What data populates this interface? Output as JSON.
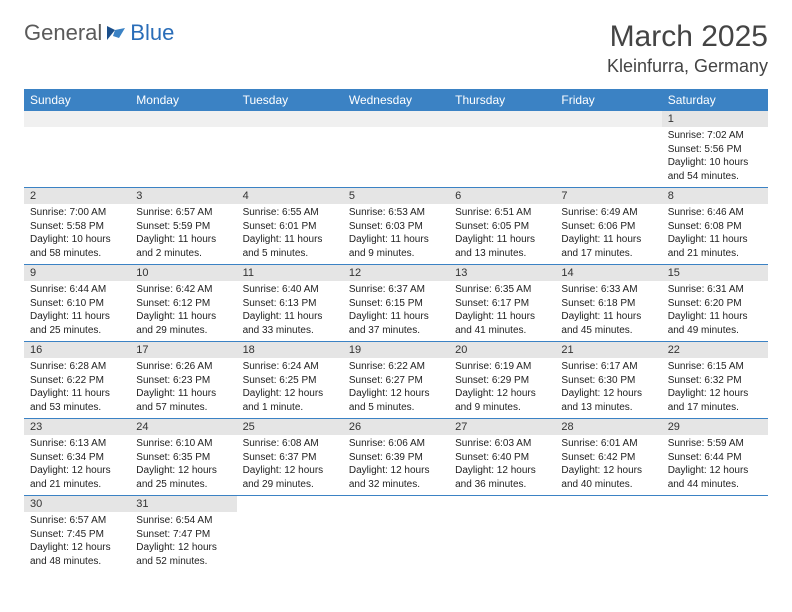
{
  "logo": {
    "text1": "General",
    "text2": "Blue"
  },
  "title": "March 2025",
  "location": "Kleinfurra, Germany",
  "colors": {
    "header_bg": "#3b82c4",
    "header_text": "#ffffff",
    "daynum_bg": "#e5e5e5",
    "border": "#3b82c4",
    "logo_gray": "#5a5a5a",
    "logo_blue": "#2a6db8"
  },
  "weekdays": [
    "Sunday",
    "Monday",
    "Tuesday",
    "Wednesday",
    "Thursday",
    "Friday",
    "Saturday"
  ],
  "weeks": [
    [
      null,
      null,
      null,
      null,
      null,
      null,
      {
        "n": "1",
        "sr": "Sunrise: 7:02 AM",
        "ss": "Sunset: 5:56 PM",
        "dl": "Daylight: 10 hours and 54 minutes."
      }
    ],
    [
      {
        "n": "2",
        "sr": "Sunrise: 7:00 AM",
        "ss": "Sunset: 5:58 PM",
        "dl": "Daylight: 10 hours and 58 minutes."
      },
      {
        "n": "3",
        "sr": "Sunrise: 6:57 AM",
        "ss": "Sunset: 5:59 PM",
        "dl": "Daylight: 11 hours and 2 minutes."
      },
      {
        "n": "4",
        "sr": "Sunrise: 6:55 AM",
        "ss": "Sunset: 6:01 PM",
        "dl": "Daylight: 11 hours and 5 minutes."
      },
      {
        "n": "5",
        "sr": "Sunrise: 6:53 AM",
        "ss": "Sunset: 6:03 PM",
        "dl": "Daylight: 11 hours and 9 minutes."
      },
      {
        "n": "6",
        "sr": "Sunrise: 6:51 AM",
        "ss": "Sunset: 6:05 PM",
        "dl": "Daylight: 11 hours and 13 minutes."
      },
      {
        "n": "7",
        "sr": "Sunrise: 6:49 AM",
        "ss": "Sunset: 6:06 PM",
        "dl": "Daylight: 11 hours and 17 minutes."
      },
      {
        "n": "8",
        "sr": "Sunrise: 6:46 AM",
        "ss": "Sunset: 6:08 PM",
        "dl": "Daylight: 11 hours and 21 minutes."
      }
    ],
    [
      {
        "n": "9",
        "sr": "Sunrise: 6:44 AM",
        "ss": "Sunset: 6:10 PM",
        "dl": "Daylight: 11 hours and 25 minutes."
      },
      {
        "n": "10",
        "sr": "Sunrise: 6:42 AM",
        "ss": "Sunset: 6:12 PM",
        "dl": "Daylight: 11 hours and 29 minutes."
      },
      {
        "n": "11",
        "sr": "Sunrise: 6:40 AM",
        "ss": "Sunset: 6:13 PM",
        "dl": "Daylight: 11 hours and 33 minutes."
      },
      {
        "n": "12",
        "sr": "Sunrise: 6:37 AM",
        "ss": "Sunset: 6:15 PM",
        "dl": "Daylight: 11 hours and 37 minutes."
      },
      {
        "n": "13",
        "sr": "Sunrise: 6:35 AM",
        "ss": "Sunset: 6:17 PM",
        "dl": "Daylight: 11 hours and 41 minutes."
      },
      {
        "n": "14",
        "sr": "Sunrise: 6:33 AM",
        "ss": "Sunset: 6:18 PM",
        "dl": "Daylight: 11 hours and 45 minutes."
      },
      {
        "n": "15",
        "sr": "Sunrise: 6:31 AM",
        "ss": "Sunset: 6:20 PM",
        "dl": "Daylight: 11 hours and 49 minutes."
      }
    ],
    [
      {
        "n": "16",
        "sr": "Sunrise: 6:28 AM",
        "ss": "Sunset: 6:22 PM",
        "dl": "Daylight: 11 hours and 53 minutes."
      },
      {
        "n": "17",
        "sr": "Sunrise: 6:26 AM",
        "ss": "Sunset: 6:23 PM",
        "dl": "Daylight: 11 hours and 57 minutes."
      },
      {
        "n": "18",
        "sr": "Sunrise: 6:24 AM",
        "ss": "Sunset: 6:25 PM",
        "dl": "Daylight: 12 hours and 1 minute."
      },
      {
        "n": "19",
        "sr": "Sunrise: 6:22 AM",
        "ss": "Sunset: 6:27 PM",
        "dl": "Daylight: 12 hours and 5 minutes."
      },
      {
        "n": "20",
        "sr": "Sunrise: 6:19 AM",
        "ss": "Sunset: 6:29 PM",
        "dl": "Daylight: 12 hours and 9 minutes."
      },
      {
        "n": "21",
        "sr": "Sunrise: 6:17 AM",
        "ss": "Sunset: 6:30 PM",
        "dl": "Daylight: 12 hours and 13 minutes."
      },
      {
        "n": "22",
        "sr": "Sunrise: 6:15 AM",
        "ss": "Sunset: 6:32 PM",
        "dl": "Daylight: 12 hours and 17 minutes."
      }
    ],
    [
      {
        "n": "23",
        "sr": "Sunrise: 6:13 AM",
        "ss": "Sunset: 6:34 PM",
        "dl": "Daylight: 12 hours and 21 minutes."
      },
      {
        "n": "24",
        "sr": "Sunrise: 6:10 AM",
        "ss": "Sunset: 6:35 PM",
        "dl": "Daylight: 12 hours and 25 minutes."
      },
      {
        "n": "25",
        "sr": "Sunrise: 6:08 AM",
        "ss": "Sunset: 6:37 PM",
        "dl": "Daylight: 12 hours and 29 minutes."
      },
      {
        "n": "26",
        "sr": "Sunrise: 6:06 AM",
        "ss": "Sunset: 6:39 PM",
        "dl": "Daylight: 12 hours and 32 minutes."
      },
      {
        "n": "27",
        "sr": "Sunrise: 6:03 AM",
        "ss": "Sunset: 6:40 PM",
        "dl": "Daylight: 12 hours and 36 minutes."
      },
      {
        "n": "28",
        "sr": "Sunrise: 6:01 AM",
        "ss": "Sunset: 6:42 PM",
        "dl": "Daylight: 12 hours and 40 minutes."
      },
      {
        "n": "29",
        "sr": "Sunrise: 5:59 AM",
        "ss": "Sunset: 6:44 PM",
        "dl": "Daylight: 12 hours and 44 minutes."
      }
    ],
    [
      {
        "n": "30",
        "sr": "Sunrise: 6:57 AM",
        "ss": "Sunset: 7:45 PM",
        "dl": "Daylight: 12 hours and 48 minutes."
      },
      {
        "n": "31",
        "sr": "Sunrise: 6:54 AM",
        "ss": "Sunset: 7:47 PM",
        "dl": "Daylight: 12 hours and 52 minutes."
      },
      null,
      null,
      null,
      null,
      null
    ]
  ]
}
